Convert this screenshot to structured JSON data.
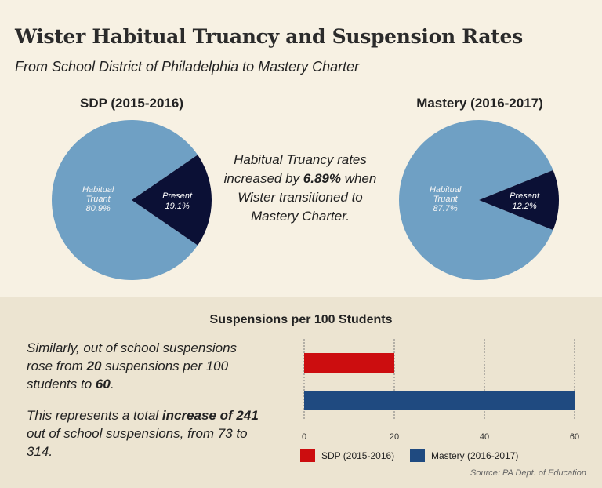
{
  "title": "Wister Habitual Truancy and Suspension Rates",
  "subtitle": "From School District of Philadelphia to Mastery Charter",
  "center_text": {
    "before": "Habitual Truancy rates increased by ",
    "highlight": "6.89%",
    "after": " when Wister transitioned to Mastery Charter."
  },
  "paragraph1": {
    "a": "Similarly, out of school suspensions rose from ",
    "b": "20",
    "c": " suspensions per 100 students to ",
    "d": "60",
    "e": "."
  },
  "paragraph2": {
    "a": "This represents a total ",
    "b": "increase of 241",
    "c": " out of school suspensions, from 73 to 314."
  },
  "source": "Source: PA Dept. of Education",
  "colors": {
    "truant": "#6fa0c4",
    "present": "#0b1035",
    "sdp": "#cc0d0f",
    "mastery": "#1f4a80"
  },
  "chart_data": [
    {
      "type": "pie",
      "title": "SDP (2015-2016)",
      "slices": [
        {
          "label": "Habitual Truant",
          "value": 80.9,
          "display": "80.9%"
        },
        {
          "label": "Present",
          "value": 19.1,
          "display": "19.1%"
        }
      ]
    },
    {
      "type": "pie",
      "title": "Mastery (2016-2017)",
      "slices": [
        {
          "label": "Habitual Truant",
          "value": 87.7,
          "display": "87.7%"
        },
        {
          "label": "Present",
          "value": 12.2,
          "display": "12.2%"
        }
      ]
    },
    {
      "type": "bar",
      "orientation": "horizontal",
      "title": "Suspensions per 100 Students",
      "series": [
        {
          "name": "SDP (2015-2016)",
          "value": 20
        },
        {
          "name": "Mastery (2016-2017)",
          "value": 60
        }
      ],
      "xlim": [
        0,
        60
      ],
      "xticks": [
        0,
        20,
        40,
        60
      ],
      "grid": true,
      "legend_position": "bottom"
    }
  ]
}
